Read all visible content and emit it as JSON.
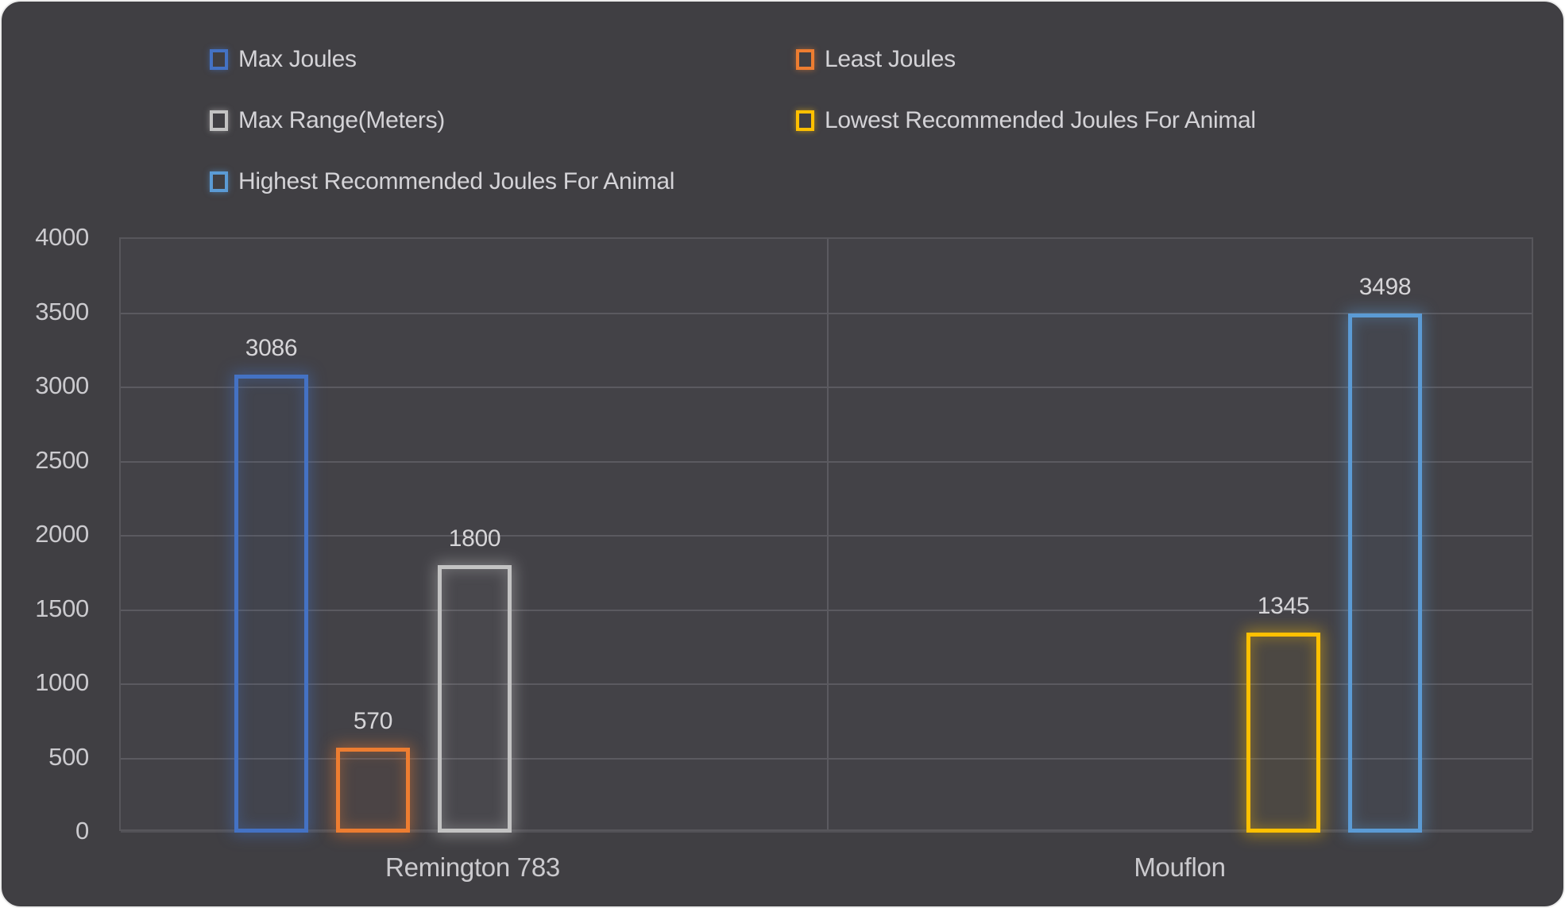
{
  "chart_data": {
    "type": "bar",
    "variant": "clustered, hollow outlined bars with neon glow",
    "title": "",
    "xlabel": "",
    "ylabel": "",
    "categories": [
      "Remington 783",
      "Mouflon"
    ],
    "series": [
      {
        "name": "Max Joules",
        "color": "#4472C4",
        "values": [
          3086,
          null
        ]
      },
      {
        "name": "Least Joules",
        "color": "#ED7D31",
        "values": [
          570,
          null
        ]
      },
      {
        "name": "Max Range(Meters)",
        "color": "#C3C3C3",
        "values": [
          1800,
          null
        ]
      },
      {
        "name": "Lowest Recommended Joules For Animal",
        "color": "#FFC000",
        "values": [
          null,
          1345
        ]
      },
      {
        "name": "Highest Recommended Joules For Animal",
        "color": "#5B9BD5",
        "values": [
          null,
          3498
        ]
      }
    ],
    "data_labels": [
      3086,
      570,
      1800,
      1345,
      3498
    ],
    "ylim": [
      0,
      4000
    ],
    "ytick_step": 500,
    "grid": true,
    "legend_position": "top-left, two columns, hollow square markers"
  },
  "theme": {
    "background": "#403F43",
    "plot_background": "#434247",
    "gridline_color": "#5B5A60",
    "baseline_color": "#525156",
    "plot_border_color": "#57565B",
    "axis_text_color": "#CBCACE",
    "legend_text_color": "#D4D3D7",
    "data_label_text_color": "#D6D5D8"
  }
}
